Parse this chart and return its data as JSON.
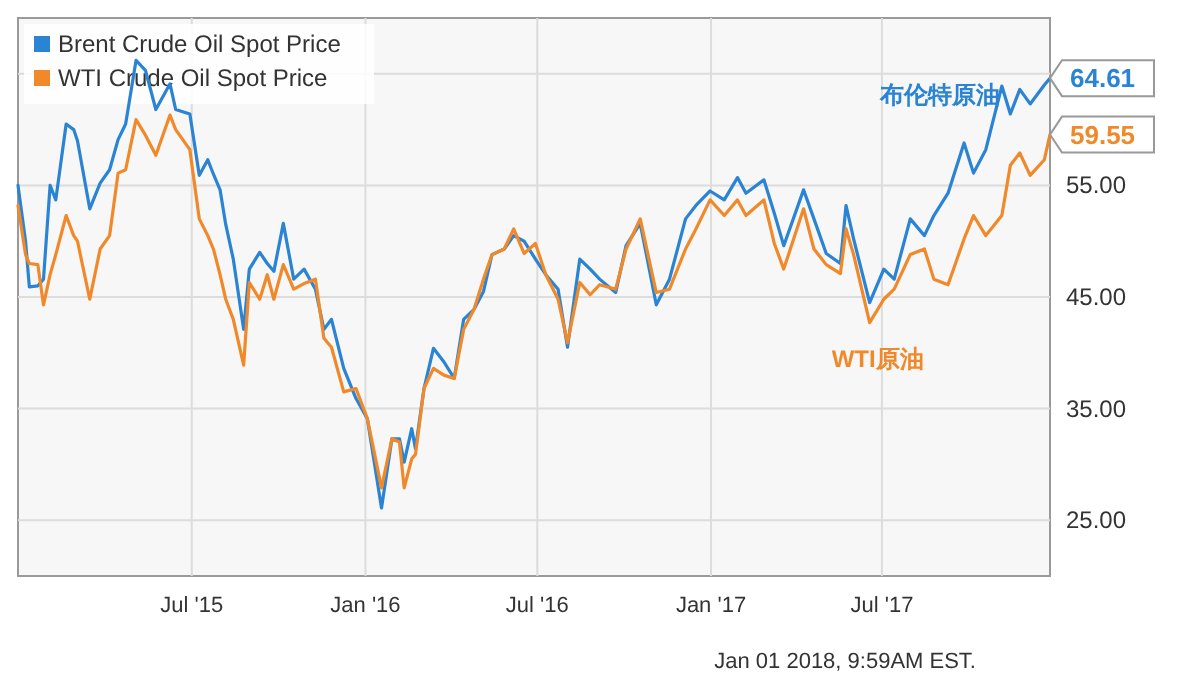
{
  "chart_data": {
    "type": "line",
    "x": [
      "2014-12-29",
      "2015-01-06",
      "2015-01-10",
      "2015-01-19",
      "2015-01-25",
      "2015-02-01",
      "2015-02-07",
      "2015-02-18",
      "2015-02-26",
      "2015-03-02",
      "2015-03-15",
      "2015-03-26",
      "2015-04-05",
      "2015-04-14",
      "2015-04-22",
      "2015-05-03",
      "2015-05-13",
      "2015-05-24",
      "2015-06-08",
      "2015-06-14",
      "2015-06-29",
      "2015-07-09",
      "2015-07-18",
      "2015-07-24",
      "2015-07-31",
      "2015-08-06",
      "2015-08-14",
      "2015-08-25",
      "2015-08-31",
      "2015-09-11",
      "2015-09-19",
      "2015-09-26",
      "2015-10-06",
      "2015-10-17",
      "2015-10-28",
      "2015-11-09",
      "2015-11-18",
      "2015-11-26",
      "2015-12-09",
      "2015-12-22",
      "2016-01-03",
      "2016-01-18",
      "2016-01-29",
      "2016-02-06",
      "2016-02-11",
      "2016-02-19",
      "2016-02-23",
      "2016-03-03",
      "2016-03-13",
      "2016-03-24",
      "2016-04-04",
      "2016-04-14",
      "2016-04-25",
      "2016-05-05",
      "2016-05-14",
      "2016-05-27",
      "2016-06-06",
      "2016-06-17",
      "2016-06-29",
      "2016-07-10",
      "2016-07-23",
      "2016-08-02",
      "2016-08-15",
      "2016-08-26",
      "2016-09-05",
      "2016-09-22",
      "2016-10-03",
      "2016-10-18",
      "2016-11-04",
      "2016-11-18",
      "2016-12-05",
      "2016-12-16",
      "2016-12-31",
      "2017-01-15",
      "2017-01-29",
      "2017-02-07",
      "2017-02-26",
      "2017-03-09",
      "2017-03-19",
      "2017-04-09",
      "2017-04-20",
      "2017-05-03",
      "2017-05-18",
      "2017-05-24",
      "2017-06-01",
      "2017-06-18",
      "2017-07-03",
      "2017-07-14",
      "2017-07-31",
      "2017-08-15",
      "2017-08-25",
      "2017-09-09",
      "2017-09-26",
      "2017-10-06",
      "2017-10-19",
      "2017-11-05",
      "2017-11-14",
      "2017-11-24",
      "2017-12-05",
      "2017-12-20",
      "2017-12-26"
    ],
    "series": [
      {
        "name": "Brent Crude Oil Spot Price",
        "color": "#2b83d3",
        "values": [
          55.0,
          50.0,
          45.9,
          46.0,
          46.6,
          55.0,
          53.7,
          60.5,
          60.0,
          59.0,
          52.9,
          55.2,
          56.4,
          59.1,
          60.5,
          66.2,
          65.3,
          61.8,
          64.1,
          61.8,
          61.4,
          55.9,
          57.3,
          56.0,
          54.6,
          51.5,
          48.4,
          42.1,
          47.5,
          49.0,
          48.0,
          47.3,
          51.6,
          46.6,
          47.5,
          45.7,
          42.1,
          43.0,
          38.6,
          35.9,
          34.1,
          26.1,
          32.3,
          32.3,
          30.2,
          33.2,
          31.4,
          36.8,
          40.4,
          39.2,
          37.7,
          43.0,
          43.9,
          45.5,
          48.8,
          49.3,
          50.5,
          50.0,
          48.4,
          47.0,
          45.7,
          40.5,
          48.4,
          47.5,
          46.6,
          45.4,
          49.6,
          51.6,
          44.3,
          46.6,
          52.0,
          53.2,
          54.5,
          53.7,
          55.7,
          54.3,
          55.5,
          52.5,
          49.6,
          54.6,
          52.0,
          48.9,
          48.0,
          53.2,
          50.2,
          44.5,
          47.5,
          46.6,
          52.0,
          50.5,
          52.3,
          54.3,
          58.8,
          56.1,
          58.2,
          63.9,
          61.4,
          63.6,
          62.3,
          64.0,
          64.61
        ]
      },
      {
        "name": "WTI Crude Oil Spot Price",
        "color": "#f0892a",
        "values": [
          53.2,
          48.8,
          48.0,
          47.9,
          44.3,
          47.0,
          48.8,
          52.3,
          50.5,
          50.0,
          44.8,
          49.3,
          50.5,
          56.1,
          56.4,
          60.9,
          59.5,
          57.7,
          61.3,
          60.0,
          58.2,
          52.0,
          50.5,
          49.3,
          47.0,
          44.8,
          43.0,
          38.9,
          46.3,
          44.8,
          47.0,
          44.8,
          47.9,
          45.7,
          46.2,
          46.6,
          41.3,
          40.5,
          36.5,
          36.8,
          34.1,
          27.9,
          32.3,
          32.0,
          27.9,
          30.5,
          30.9,
          36.8,
          38.6,
          38.0,
          37.7,
          42.1,
          43.9,
          46.6,
          48.8,
          49.3,
          51.1,
          48.9,
          49.8,
          47.0,
          44.8,
          40.9,
          46.3,
          45.2,
          46.1,
          45.7,
          49.3,
          52.0,
          45.4,
          45.7,
          49.3,
          51.1,
          53.7,
          52.3,
          53.7,
          52.3,
          53.7,
          49.8,
          47.5,
          52.9,
          49.3,
          47.9,
          47.1,
          51.1,
          48.8,
          42.7,
          44.8,
          45.7,
          48.8,
          49.3,
          46.6,
          46.1,
          50.2,
          52.3,
          50.5,
          52.3,
          56.8,
          57.9,
          55.9,
          57.3,
          59.55
        ]
      }
    ],
    "xlim": [
      "2014-12-29",
      "2017-12-26"
    ],
    "xticks": [
      {
        "value": "2015-07-01",
        "label": "Jul '15"
      },
      {
        "value": "2016-01-01",
        "label": "Jan '16"
      },
      {
        "value": "2016-07-01",
        "label": "Jul '16"
      },
      {
        "value": "2017-01-01",
        "label": "Jan '17"
      },
      {
        "value": "2017-07-01",
        "label": "Jul '17"
      }
    ],
    "ylim": [
      20,
      70
    ],
    "yticks": [
      {
        "value": 25,
        "label": "25.00"
      },
      {
        "value": 35,
        "label": "35.00"
      },
      {
        "value": 45,
        "label": "45.00"
      },
      {
        "value": 55,
        "label": "55.00"
      },
      {
        "value": 65,
        "label": null
      }
    ],
    "grid": true,
    "legend": "top left",
    "marker": "none",
    "line_style": "solid",
    "annotations": [
      {
        "text": "64.61",
        "x": "2017-12-26",
        "y": 64.61
      },
      {
        "text": "59.55",
        "x": "2017-12-26",
        "y": 59.55
      },
      {
        "text": "布伦特原油",
        "x": "2017-09-26",
        "y": 58.8
      },
      {
        "text": "WTI原油",
        "x": "2017-06-18",
        "y": 42.7
      },
      "Jan 01 2018, 9:59AM EST."
    ]
  }
}
